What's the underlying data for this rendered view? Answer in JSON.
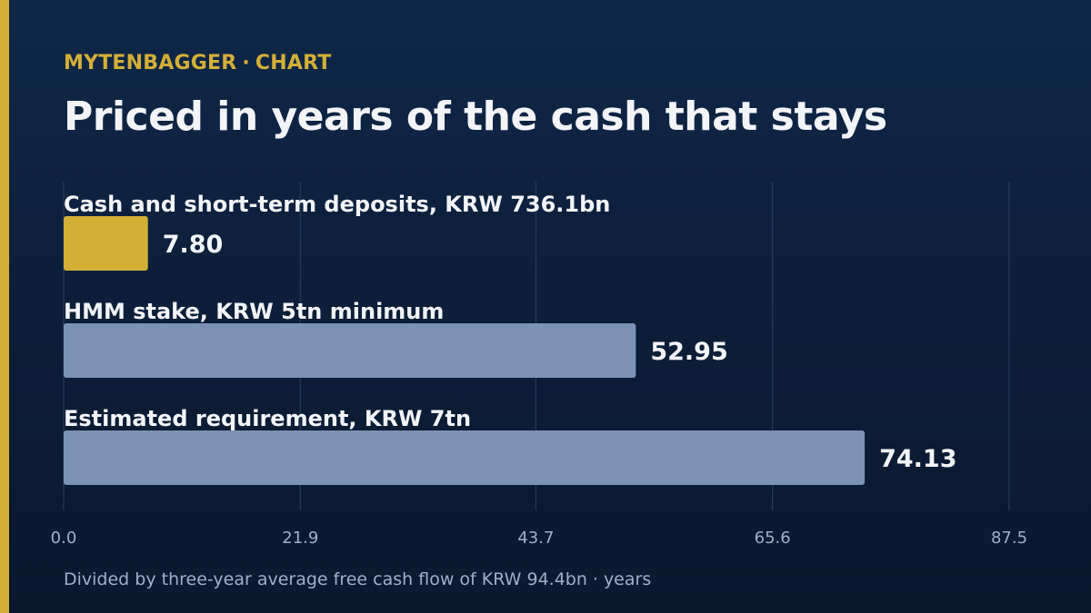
{
  "header": {
    "brand": "MYTENBAGGER",
    "separator": "·",
    "section": "CHART",
    "title": "Priced in years of the cash that stays"
  },
  "footnote": {
    "text": "Divided by three-year average free cash flow of KRW 94.4bn",
    "separator": "·",
    "unit": "years"
  },
  "colors": {
    "accent": "#d4af37",
    "bar_default": "#7b92b4",
    "background": "#0c1d37",
    "gridline": "#2b4060",
    "label": "#f2f4f8",
    "tick": "#9fb0c8"
  },
  "chart_data": {
    "type": "bar",
    "orientation": "horizontal",
    "categories": [
      "Cash and short-term deposits, KRW 736.1bn",
      "HMM stake, KRW 5tn minimum",
      "Estimated requirement, KRW 7tn"
    ],
    "values": [
      7.8,
      52.95,
      74.13
    ],
    "value_labels": [
      "7.80",
      "52.95",
      "74.13"
    ],
    "highlight_index": 0,
    "x_ticks": [
      0.0,
      21.9,
      43.7,
      65.6,
      87.5
    ],
    "x_tick_labels": [
      "0.0",
      "21.9",
      "43.7",
      "65.6",
      "87.5"
    ],
    "xlim": [
      0,
      87.5
    ],
    "xlabel": "",
    "ylabel": "",
    "grid": "vertical",
    "legend": "none"
  }
}
